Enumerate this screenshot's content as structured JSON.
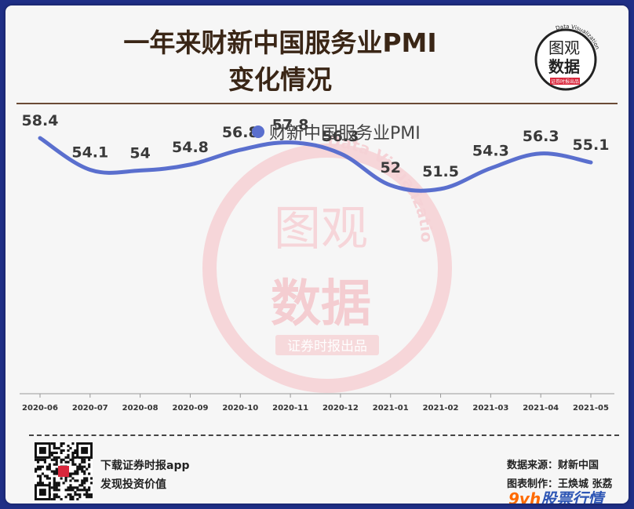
{
  "header": {
    "title_line1": "一年来财新中国服务业PMI",
    "title_line2": "变化情况"
  },
  "logo": {
    "line1": "图观",
    "line2": "数据",
    "ring_text": "Data Visualization",
    "tag": "证券时报出品"
  },
  "watermark": {
    "line1": "图观",
    "line2": "数据",
    "ring_text": "Data Visualization",
    "tag": "证券时报出品"
  },
  "chart_data": {
    "type": "line",
    "series": [
      {
        "name": "财新中国服务业PMI",
        "values": [
          58.4,
          54.1,
          54,
          54.8,
          56.8,
          57.8,
          56.3,
          52,
          51.5,
          54.3,
          56.3,
          55.1
        ]
      }
    ],
    "categories": [
      "2020-06",
      "2020-07",
      "2020-08",
      "2020-09",
      "2020-10",
      "2020-11",
      "2020-12",
      "2021-01",
      "2021-02",
      "2021-03",
      "2021-04",
      "2021-05"
    ],
    "data_labels": [
      "58.4",
      "54.1",
      "54",
      "54.8",
      "56.8",
      "57.8",
      "56.3",
      "52",
      "51.5",
      "54.3",
      "56.3",
      "55.1"
    ],
    "legend_position": "top-center",
    "grid": false,
    "ylim": [
      20,
      70
    ],
    "color": "#5a6fce"
  },
  "footer": {
    "app_line1": "下载证券时报app",
    "app_line2": "发现投资价值",
    "source": "数据来源：财新中国",
    "credit": "图表制作：王焕城 张荔",
    "brand_main": "9vh",
    "brand_rest": "股票行情"
  }
}
